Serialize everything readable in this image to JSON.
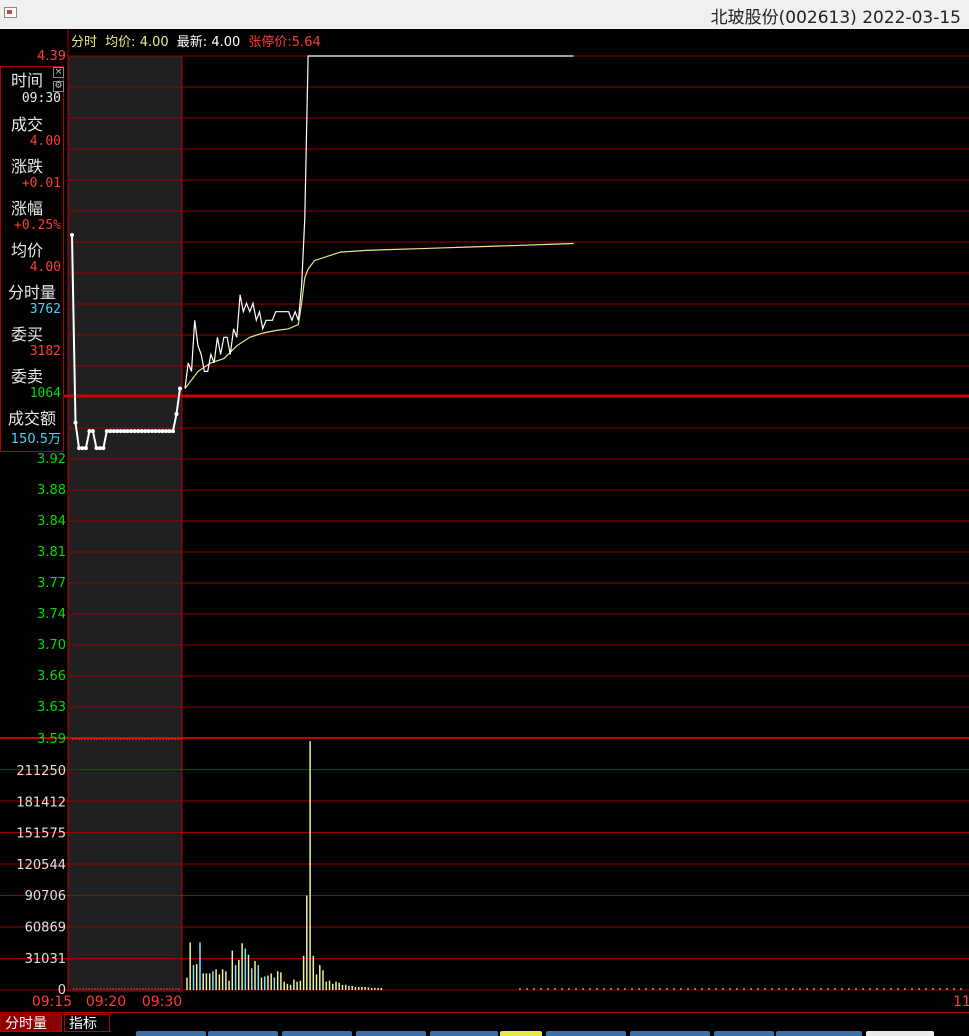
{
  "title": {
    "stock_name": "北玻股份(002613)",
    "date": "2022-03-15",
    "full": "北玻股份(002613) 2022-03-15"
  },
  "header": {
    "fenshi": "分时",
    "avg_label": "均价:",
    "avg_value": "4.00",
    "latest_label": "最新:",
    "latest_value": "4.00",
    "limit_label": "张停价:5.64"
  },
  "info_panel": {
    "time_label": "时间",
    "time_value": "09:30",
    "deal_label": "成交",
    "deal_value": "4.00",
    "change_label": "涨跌",
    "change_value": "+0.01",
    "pct_label": "涨幅",
    "pct_value": "+0.25%",
    "avg_label": "均价",
    "avg_value": "4.00",
    "vol_label": "分时量",
    "vol_value": "3762",
    "bid_label": "委买",
    "bid_value": "3182",
    "ask_label": "委卖",
    "ask_value": "1064",
    "amount_label": "成交额",
    "amount_value": "150.5万"
  },
  "colors": {
    "grid": "#9a0000",
    "up": "#ff3b3b",
    "down": "#00dd00",
    "price_line": "#ffffff",
    "avg_line": "#e8e88a",
    "vol_yellow": "#f0f0a0",
    "vol_cyan": "#7de3ff",
    "auction_bg": "#202020"
  },
  "bottom_tabs": [
    "分时量",
    "指标"
  ],
  "chart_data": {
    "type": "line",
    "price_axis_ticks": [
      "4.39",
      "3.92",
      "3.88",
      "3.84",
      "3.81",
      "3.77",
      "3.74",
      "3.70",
      "3.66",
      "3.63",
      "3.59"
    ],
    "price_ylim": [
      3.59,
      4.39
    ],
    "time_ticks": [
      "09:15",
      "09:20",
      "09:30",
      "11"
    ],
    "volume_axis_ticks": [
      "211250",
      "181412",
      "151575",
      "120544",
      "90706",
      "60869",
      "31031",
      "0"
    ],
    "volume_ylim": [
      0,
      241088
    ],
    "auction_series": {
      "name": "",
      "x": [
        0,
        0.5,
        1,
        1.5,
        2,
        2.5,
        3,
        3.5,
        4,
        4.5,
        5,
        5.5,
        6,
        6.5,
        7,
        7.5,
        8,
        8.5,
        9,
        9.5,
        10,
        10.5,
        11,
        11.5,
        12,
        12.5,
        13,
        13.5,
        14,
        14.5,
        15,
        15.5
      ],
      "values": [
        4.18,
        3.96,
        3.93,
        3.93,
        3.93,
        3.95,
        3.95,
        3.93,
        3.93,
        3.93,
        3.95,
        3.95,
        3.95,
        3.95,
        3.95,
        3.95,
        3.95,
        3.95,
        3.95,
        3.95,
        3.95,
        3.95,
        3.95,
        3.95,
        3.95,
        3.95,
        3.95,
        3.95,
        3.95,
        3.95,
        3.97,
        4.0
      ]
    },
    "price_series": {
      "name": "",
      "x": [
        0,
        1,
        2,
        3,
        4,
        5,
        6,
        7,
        8,
        9,
        10,
        11,
        12,
        13,
        14,
        15,
        16,
        17,
        18,
        19,
        20,
        21,
        22,
        23,
        24,
        25,
        26,
        27,
        28,
        29,
        30,
        31,
        32,
        33,
        34,
        35,
        36,
        37,
        38,
        39,
        40,
        41,
        42,
        43,
        44,
        45,
        46,
        47,
        48,
        49,
        50,
        51,
        52,
        53,
        54,
        55,
        56,
        57,
        58,
        59,
        60,
        61,
        62,
        63,
        64,
        65,
        66,
        67,
        68,
        69,
        70,
        71,
        72,
        73,
        74,
        75,
        76,
        77,
        78,
        79,
        80,
        81,
        82,
        83,
        84,
        85,
        86,
        87,
        88,
        89,
        90,
        91,
        92,
        93,
        94,
        95,
        96,
        97,
        98,
        99,
        100,
        101,
        102,
        103,
        104,
        105,
        106,
        107,
        108,
        109,
        110,
        111,
        112,
        113,
        114,
        115,
        116,
        117,
        118,
        119,
        120
      ],
      "values": [
        4.0,
        4.03,
        4.02,
        4.08,
        4.05,
        4.04,
        4.02,
        4.02,
        4.04,
        4.03,
        4.06,
        4.04,
        4.06,
        4.06,
        4.04,
        4.07,
        4.06,
        4.11,
        4.09,
        4.1,
        4.09,
        4.1,
        4.08,
        4.09,
        4.07,
        4.08,
        4.08,
        4.08,
        4.09,
        4.09,
        4.09,
        4.09,
        4.09,
        4.08,
        4.09,
        4.08,
        4.12,
        4.2,
        4.39,
        4.39,
        4.39,
        4.39,
        4.39,
        4.39,
        4.39,
        4.39,
        4.39,
        4.39,
        4.39,
        4.39,
        4.39,
        4.39,
        4.39,
        4.39,
        4.39,
        4.39,
        4.39,
        4.39,
        4.39,
        4.39,
        4.39,
        4.39,
        4.39,
        4.39,
        4.39,
        4.39,
        4.39,
        4.39,
        4.39,
        4.39,
        4.39,
        4.39,
        4.39,
        4.39,
        4.39,
        4.39,
        4.39,
        4.39,
        4.39,
        4.39,
        4.39,
        4.39,
        4.39,
        4.39,
        4.39,
        4.39,
        4.39,
        4.39,
        4.39,
        4.39,
        4.39,
        4.39,
        4.39,
        4.39,
        4.39,
        4.39,
        4.39,
        4.39,
        4.39,
        4.39,
        4.39,
        4.39,
        4.39,
        4.39,
        4.39,
        4.39,
        4.39,
        4.39,
        4.39,
        4.39,
        4.39,
        4.39,
        4.39,
        4.39,
        4.39,
        4.39,
        4.39,
        4.39,
        4.39,
        4.39,
        4.39
      ]
    },
    "avg_series": {
      "name": "",
      "x": [
        0,
        4,
        8,
        12,
        16,
        20,
        24,
        28,
        32,
        35,
        36,
        37,
        38,
        40,
        44,
        48,
        56,
        64,
        72,
        80,
        88,
        96,
        104,
        112,
        120
      ],
      "values": [
        4.0,
        4.02,
        4.03,
        4.035,
        4.05,
        4.06,
        4.065,
        4.068,
        4.07,
        4.075,
        4.1,
        4.13,
        4.14,
        4.15,
        4.155,
        4.16,
        4.162,
        4.163,
        4.164,
        4.165,
        4.166,
        4.167,
        4.168,
        4.169,
        4.17
      ]
    },
    "volume_series": {
      "name": "",
      "x": [
        0,
        1,
        2,
        3,
        4,
        5,
        6,
        7,
        8,
        9,
        10,
        11,
        12,
        13,
        14,
        15,
        16,
        17,
        18,
        19,
        20,
        21,
        22,
        23,
        24,
        25,
        26,
        27,
        28,
        29,
        30,
        31,
        32,
        33,
        34,
        35,
        36,
        37,
        38,
        39,
        40,
        41,
        42,
        43,
        44,
        45,
        46,
        47,
        48,
        49,
        50,
        51,
        52,
        53,
        54,
        55,
        56,
        57,
        58,
        59,
        60
      ],
      "values": [
        12000,
        46000,
        24000,
        25000,
        46000,
        16000,
        16000,
        16000,
        18000,
        20000,
        15000,
        20000,
        18000,
        9000,
        38000,
        24000,
        29000,
        45000,
        40000,
        34000,
        21000,
        28000,
        24000,
        12000,
        13000,
        14000,
        16000,
        12000,
        18000,
        17000,
        8000,
        6000,
        5000,
        10000,
        8000,
        9000,
        33000,
        91000,
        240000,
        33000,
        15000,
        24000,
        19000,
        8000,
        9000,
        6000,
        8000,
        7000,
        5000,
        5000,
        4000,
        4000,
        3000,
        3000,
        3000,
        3000,
        2500,
        2000,
        2000,
        2000,
        2000
      ],
      "colors": [
        "y",
        "y",
        "c",
        "y",
        "c",
        "y",
        "y",
        "y",
        "c",
        "y",
        "y",
        "y",
        "y",
        "y",
        "y",
        "c",
        "y",
        "y",
        "c",
        "y",
        "c",
        "y",
        "c",
        "y",
        "c",
        "y",
        "y",
        "c",
        "y",
        "y",
        "y",
        "y",
        "y",
        "y",
        "y",
        "y",
        "y",
        "y",
        "y",
        "y",
        "y",
        "y",
        "y",
        "y",
        "y",
        "y",
        "y",
        "y",
        "y",
        "y",
        "y",
        "y",
        "y",
        "y",
        "y",
        "y",
        "y",
        "y",
        "y",
        "y",
        "y"
      ]
    },
    "grid": true
  }
}
